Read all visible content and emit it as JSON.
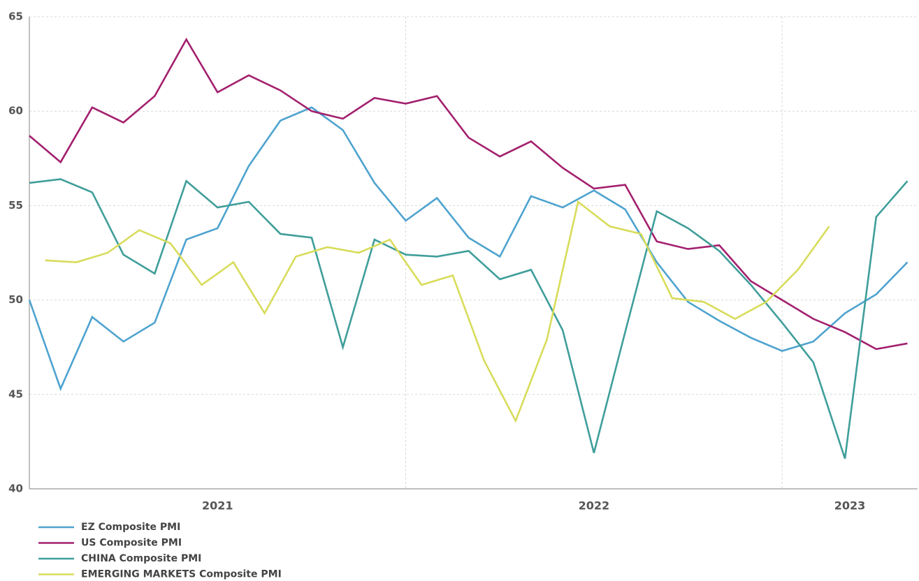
{
  "chart_data": {
    "type": "line",
    "x": [
      2021.0,
      2021.083,
      2021.167,
      2021.25,
      2021.333,
      2021.417,
      2021.5,
      2021.583,
      2021.667,
      2021.75,
      2021.833,
      2021.917,
      2022.0,
      2022.083,
      2022.167,
      2022.25,
      2022.333,
      2022.417,
      2022.5,
      2022.583,
      2022.667,
      2022.75,
      2022.833,
      2022.917,
      2023.0,
      2023.083,
      2023.167,
      2023.25,
      2023.333
    ],
    "series": [
      {
        "name": "EZ Composite PMI",
        "color": "#4ea3cf",
        "values": [
          50.0,
          45.3,
          49.1,
          47.8,
          48.8,
          53.2,
          53.8,
          57.1,
          59.5,
          60.2,
          59.0,
          56.2,
          54.2,
          55.4,
          53.3,
          52.3,
          55.5,
          54.9,
          55.8,
          54.8,
          52.0,
          49.9,
          48.9,
          48.0,
          47.3,
          47.8,
          49.3,
          50.3,
          52.0
        ]
      },
      {
        "name": "US Composite PMI",
        "color": "#a3206e",
        "values": [
          58.7,
          57.3,
          60.2,
          59.4,
          60.8,
          63.8,
          61.0,
          61.9,
          61.1,
          60.0,
          59.6,
          60.7,
          60.4,
          60.8,
          58.6,
          57.6,
          58.4,
          57.0,
          55.9,
          56.1,
          53.1,
          52.7,
          52.9,
          51.0,
          50.0,
          49.0,
          48.3,
          47.4,
          47.7
        ]
      },
      {
        "name": "CHINA Composite PMI",
        "color": "#3f9e9a",
        "values": [
          56.2,
          56.4,
          55.7,
          52.4,
          51.4,
          56.3,
          54.9,
          55.2,
          53.5,
          53.3,
          47.5,
          53.2,
          52.4,
          52.3,
          52.6,
          51.1,
          51.6,
          48.4,
          41.9,
          48.3,
          54.7,
          53.8,
          52.6,
          50.8,
          48.8,
          46.7,
          41.6,
          54.4,
          56.3
        ]
      },
      {
        "name": "EMERGING MARKETS Composite PMI",
        "color": "#d8dc5a",
        "x": [
          2021.042,
          2021.125,
          2021.208,
          2021.292,
          2021.375,
          2021.458,
          2021.542,
          2021.625,
          2021.708,
          2021.792,
          2021.875,
          2021.958,
          2022.042,
          2022.125,
          2022.208,
          2022.292,
          2022.375,
          2022.458,
          2022.542,
          2022.625,
          2022.708,
          2022.792,
          2022.875,
          2022.958,
          2023.042,
          2023.125
        ],
        "values": [
          52.1,
          52.0,
          52.5,
          53.7,
          53.0,
          50.8,
          52.0,
          49.3,
          52.3,
          52.8,
          52.5,
          53.2,
          50.8,
          51.3,
          46.8,
          43.6,
          47.9,
          55.2,
          53.9,
          53.5,
          50.1,
          49.9,
          49.0,
          49.9,
          51.6,
          53.9
        ]
      }
    ],
    "xlim": [
      2021.0,
      2023.36
    ],
    "xticks": [
      {
        "value": 2021.5,
        "label": "2021"
      },
      {
        "value": 2022.5,
        "label": "2022"
      },
      {
        "value": 2023.18,
        "label": "2023"
      }
    ],
    "x_gridlines": [
      2022,
      2023
    ],
    "ylim": [
      40,
      65
    ],
    "yticks": [
      40,
      45,
      50,
      55,
      60,
      65
    ],
    "grid": true,
    "legend": "bottom-left"
  }
}
